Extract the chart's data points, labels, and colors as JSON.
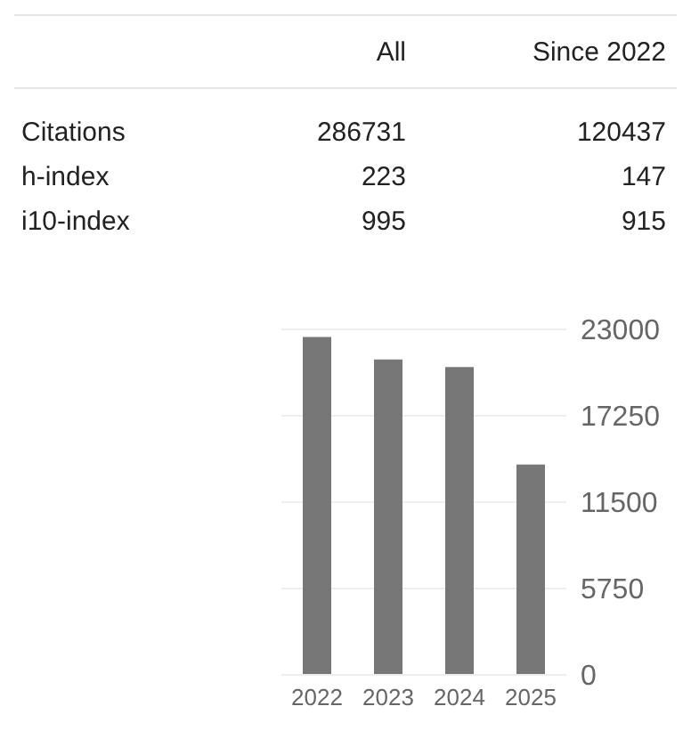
{
  "chart_data": [
    {
      "type": "other",
      "categories": [
        "Citations",
        "h-index",
        "i10-index"
      ],
      "data_labels": true,
      "series": [
        {
          "name": "All",
          "values": [
            286731,
            223,
            995
          ]
        },
        {
          "name": "Since 2022",
          "values": [
            120437,
            147,
            915
          ]
        }
      ]
    },
    {
      "type": "bar",
      "categories": [
        "2022",
        "2023",
        "2024",
        "2025"
      ],
      "values": [
        22500,
        21000,
        20500,
        14000
      ],
      "color": "#777777",
      "ylim": [
        0,
        23000
      ],
      "yticks": [
        0,
        5750,
        11500,
        17250,
        23000
      ],
      "grid": "y"
    }
  ]
}
